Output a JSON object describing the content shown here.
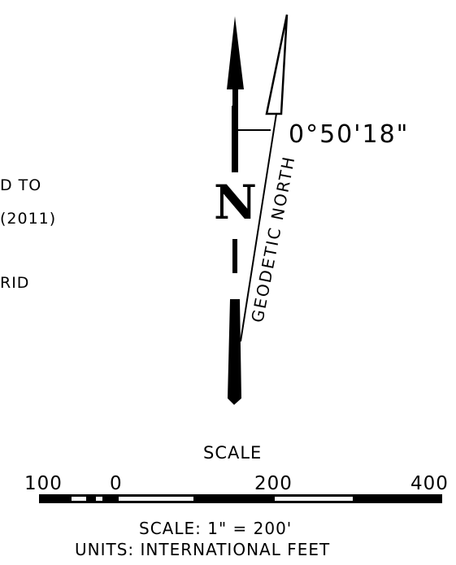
{
  "notes": {
    "line1_fragment": "D TO",
    "line2_fragment": "(2011)",
    "line3_fragment": "RID"
  },
  "north_arrow": {
    "grid_north_label": "N",
    "geodetic_north_label": "GEODETIC NORTH",
    "convergence_angle": "0°50'18\""
  },
  "scale_bar": {
    "title": "SCALE",
    "tick_labels": [
      "100",
      "0",
      "200",
      "400"
    ],
    "scale_text": "SCALE: 1\" = 200'",
    "units_text": "UNITS: INTERNATIONAL FEET"
  }
}
